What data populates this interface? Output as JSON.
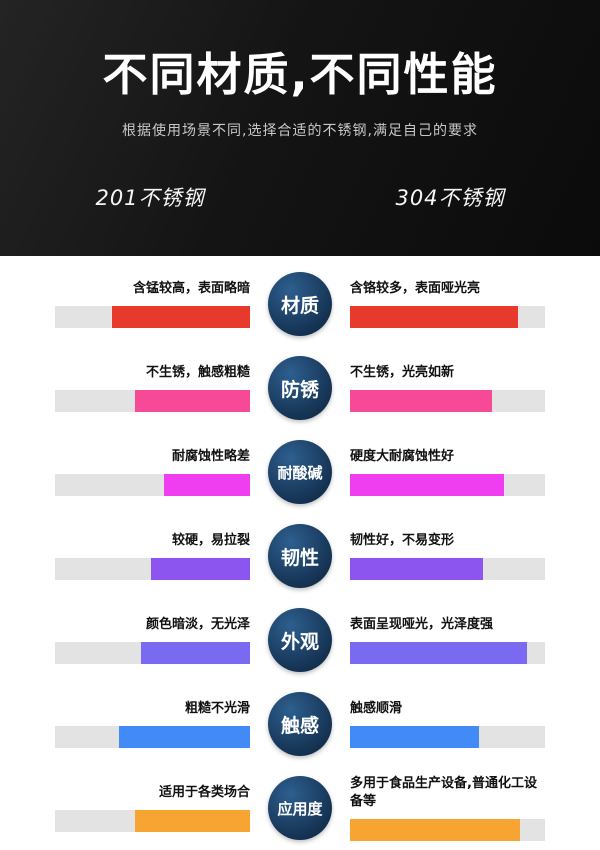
{
  "header": {
    "title": "不同材质,不同性能",
    "subtitle": "根据使用场景不同,选择合适的不锈钢,满足自己的要求",
    "left_column": "201不锈钢",
    "right_column": "304不锈钢"
  },
  "theme": {
    "badge_color": "#14304f",
    "badge_highlight": "#2d5f8f",
    "track_color": "#e3e3e3",
    "hero_background": "#141414"
  },
  "rows": [
    {
      "category": "材质",
      "color": "#e83a2c",
      "left": {
        "text": "含锰较高，表面略暗",
        "fill": 71
      },
      "right": {
        "text": "含铬较多，表面哑光亮",
        "fill": 86
      }
    },
    {
      "category": "防锈",
      "color": "#f74a96",
      "left": {
        "text": "不生锈，触感粗糙",
        "fill": 59
      },
      "right": {
        "text": "不生锈，光亮如新",
        "fill": 73
      }
    },
    {
      "category": "耐酸碱",
      "color": "#ee3ef0",
      "left": {
        "text": "耐腐蚀性略差",
        "fill": 44
      },
      "right": {
        "text": "硬度大耐腐蚀性好",
        "fill": 79
      }
    },
    {
      "category": "韧性",
      "color": "#8d55f0",
      "left": {
        "text": "较硬，易拉裂",
        "fill": 51
      },
      "right": {
        "text": "韧性好，不易变形",
        "fill": 68
      }
    },
    {
      "category": "外观",
      "color": "#7a6af2",
      "left": {
        "text": "颜色暗淡，无光泽",
        "fill": 56
      },
      "right": {
        "text": "表面呈现哑光，光泽度强",
        "fill": 91
      }
    },
    {
      "category": "触感",
      "color": "#418af7",
      "left": {
        "text": "粗糙不光滑",
        "fill": 67
      },
      "right": {
        "text": "触感顺滑",
        "fill": 66
      }
    },
    {
      "category": "应用度",
      "color": "#f7a433",
      "left": {
        "text": "适用于各类场合",
        "fill": 59
      },
      "right": {
        "text": "多用于食品生产设备,普通化工设备等",
        "fill": 87
      }
    }
  ]
}
